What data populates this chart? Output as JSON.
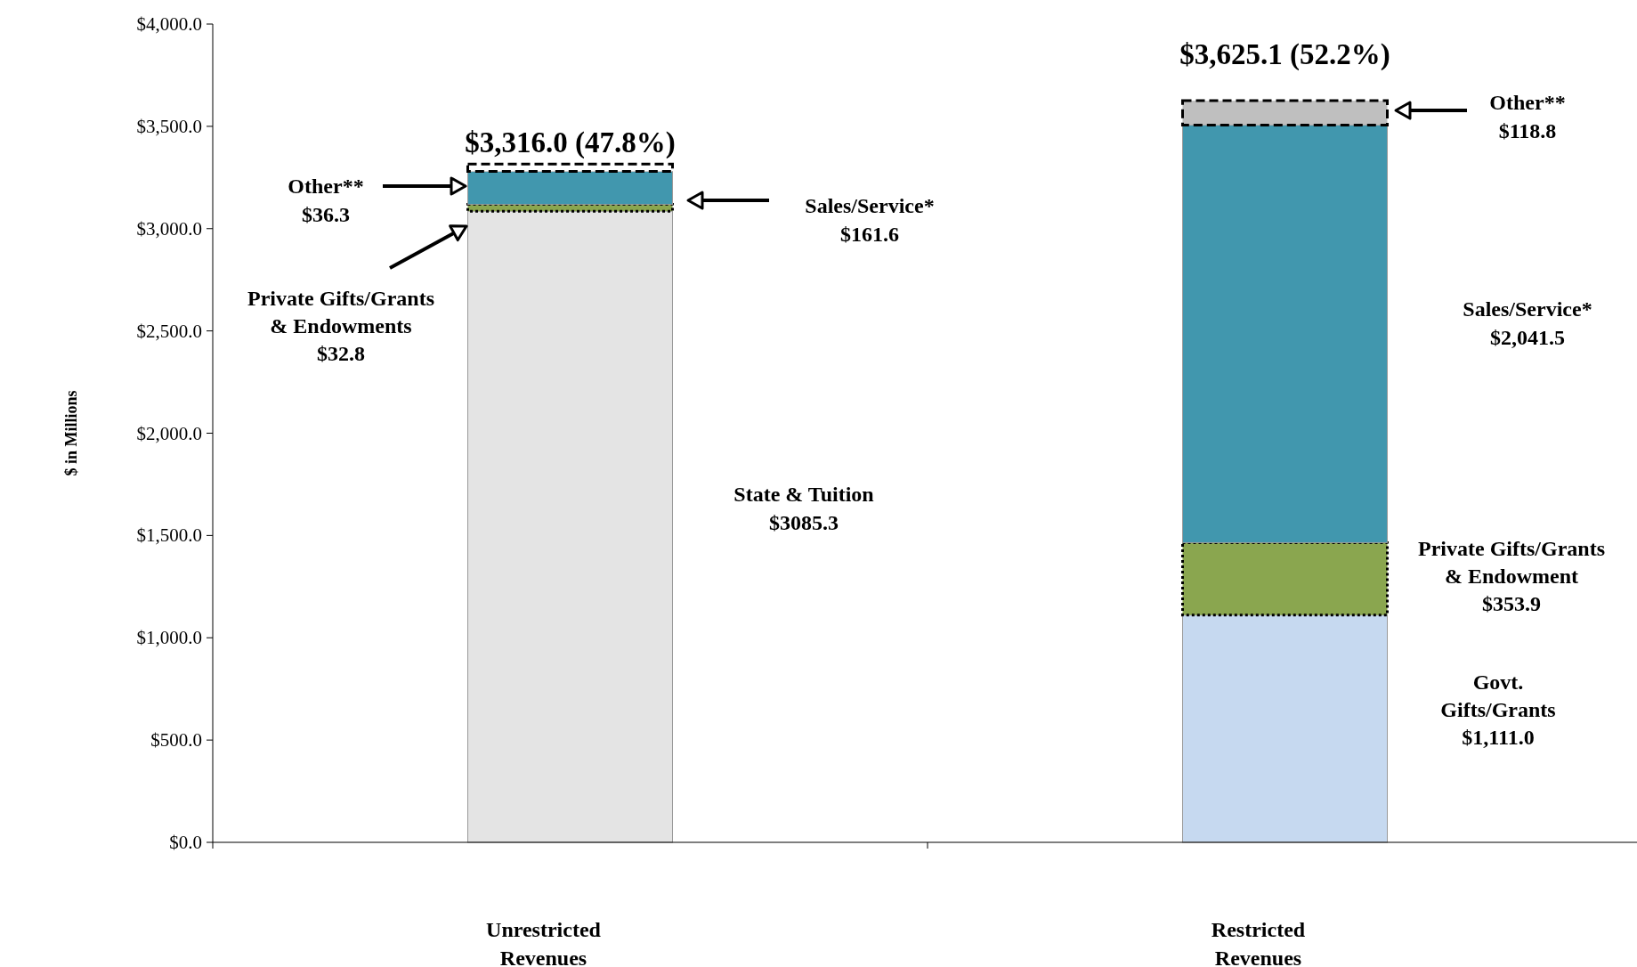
{
  "chart_data": {
    "type": "bar",
    "stacked": true,
    "ylabel": "$ in Millions",
    "categories": [
      "Unrestricted\nRevenues",
      "Restricted\nRevenues"
    ],
    "series": [
      {
        "color": "#e4e4e4",
        "values": [
          3085.3,
          null
        ]
      },
      {
        "color": "#c6d9f0",
        "values": [
          null,
          1111.0
        ]
      },
      {
        "color": "#8aa64f",
        "values": [
          32.8,
          353.9
        ],
        "line_style": "dotted"
      },
      {
        "color": "#4197ae",
        "values": [
          161.6,
          2041.5
        ]
      },
      {
        "colors": [
          "#ffffff",
          "#bfbfbf"
        ],
        "values": [
          36.3,
          118.8
        ],
        "line_style": "dashed"
      }
    ],
    "ylim": [
      0,
      4000
    ],
    "yticks": [
      {
        "value": 0,
        "label": "$0.0"
      },
      {
        "value": 500,
        "label": "$500.0"
      },
      {
        "value": 1000,
        "label": "$1,000.0"
      },
      {
        "value": 1500,
        "label": "$1,500.0"
      },
      {
        "value": 2000,
        "label": "$2,000.0"
      },
      {
        "value": 2500,
        "label": "$2,500.0"
      },
      {
        "value": 3000,
        "label": "$3,000.0"
      },
      {
        "value": 3500,
        "label": "$3,500.0"
      },
      {
        "value": 4000,
        "label": "$4,000.0"
      }
    ],
    "totals": [
      "$3,316.0 (47.8%)",
      "$3,625.1 (52.2%)"
    ],
    "annotations": [
      "Other**\n$36.3",
      "Sales/Service*\n$161.6",
      "Private Gifts/Grants\n& Endowments\n$32.8",
      "State & Tuition\n$3085.3",
      "Other**\n$118.8",
      "Sales/Service*\n$2,041.5",
      "Private Gifts/Grants\n& Endowment\n$353.9",
      "Govt.\nGifts/Grants\n$1,111.0"
    ]
  }
}
